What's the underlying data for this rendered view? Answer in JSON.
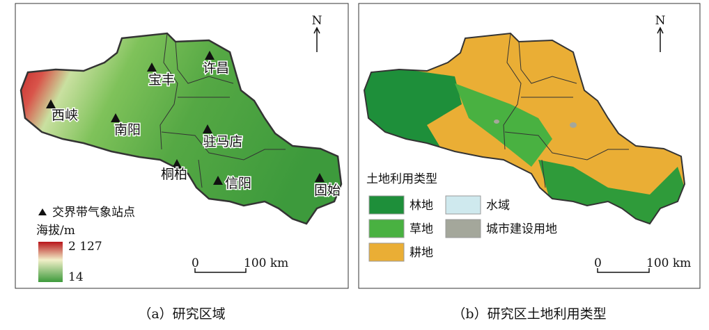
{
  "panel_a": {
    "north": "N",
    "stations": [
      {
        "label": "许昌"
      },
      {
        "label": "宝丰"
      },
      {
        "label": "西峡"
      },
      {
        "label": "南阳"
      },
      {
        "label": "驻马店"
      },
      {
        "label": "桐柏"
      },
      {
        "label": "信阳"
      },
      {
        "label": "固始"
      }
    ],
    "legend_station": "交界带气象站点",
    "elevation_title": "海拔/m",
    "elevation_max": "2 127",
    "elevation_min": "14",
    "scale_start": "0",
    "scale_end": "100 km",
    "caption": "（a）研究区域"
  },
  "panel_b": {
    "north": "N",
    "legend_title": "土地利用类型",
    "legend": [
      {
        "label": "林地",
        "color": "#1e8f3a"
      },
      {
        "label": "水域",
        "color": "#cfe9ee"
      },
      {
        "label": "草地",
        "color": "#49b141"
      },
      {
        "label": "城市建设用地",
        "color": "#a4a79b"
      },
      {
        "label": "耕地",
        "color": "#eaae35"
      }
    ],
    "scale_start": "0",
    "scale_end": "100 km",
    "caption": "（b）研究区土地利用类型"
  }
}
